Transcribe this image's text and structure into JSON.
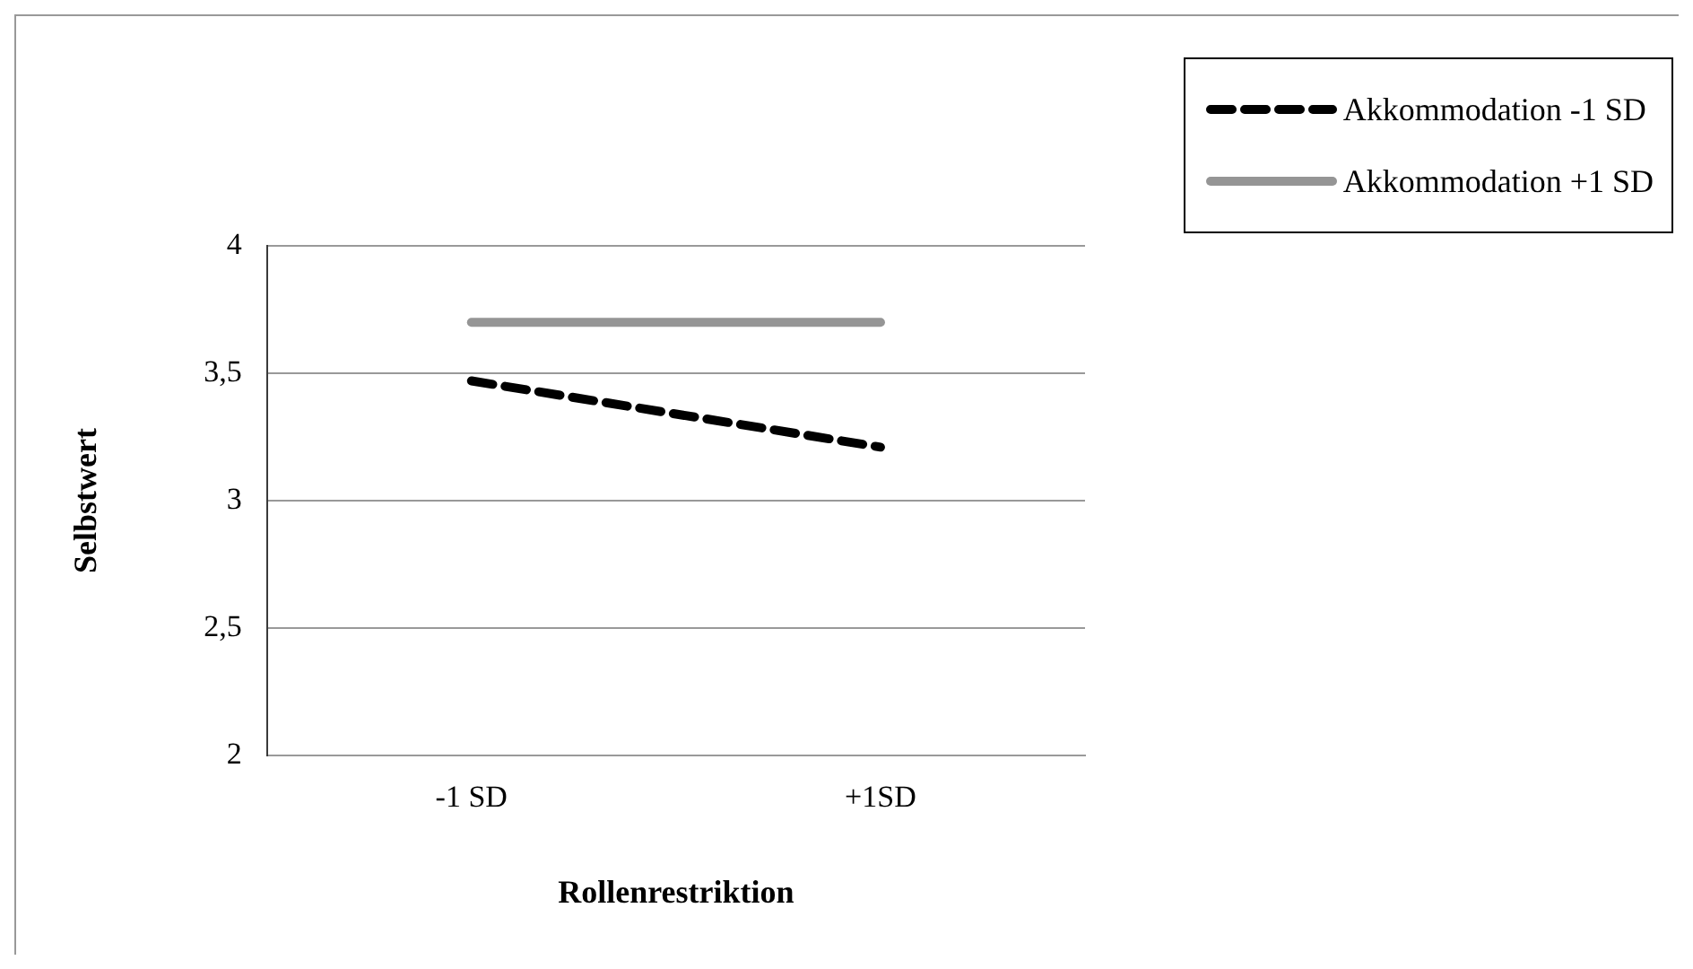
{
  "chart_data": {
    "type": "line",
    "xlabel": "Rollenrestriktion",
    "ylabel": "Selbstwert",
    "categories": [
      "-1 SD",
      "+1SD"
    ],
    "series": [
      {
        "name": "Akkommodation -1 SD",
        "color": "#000000",
        "values": [
          3.47,
          3.21
        ],
        "line_style": "dashed"
      },
      {
        "name": "Akkommodation +1 SD",
        "color": "#959595",
        "values": [
          3.7,
          3.7
        ],
        "line_style": "solid"
      }
    ],
    "ylim": [
      2,
      4
    ],
    "yticks": [
      {
        "value": 2,
        "label": "2"
      },
      {
        "value": 2.5,
        "label": "2,5"
      },
      {
        "value": 3,
        "label": "3"
      },
      {
        "value": 3.5,
        "label": "3,5"
      },
      {
        "value": 4,
        "label": "4"
      }
    ],
    "grid": "y",
    "legend": "top right",
    "marker": "none"
  }
}
